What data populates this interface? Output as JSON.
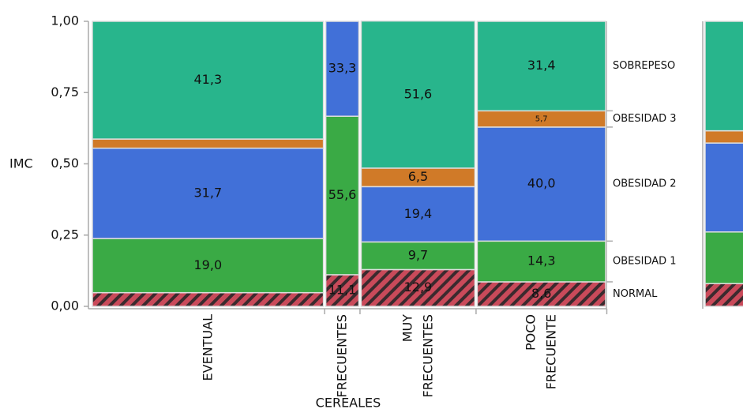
{
  "chart_data": {
    "type": "mosaic",
    "y_label": "IMC",
    "x_label": "CEREALES",
    "categories": [
      "EVENTUAL",
      "FRECUENTES",
      "MUY FRECUENTES",
      "POCO FRECUENTE"
    ],
    "column_sizes": [
      63,
      9,
      31,
      35
    ],
    "ylim": [
      0,
      1
    ],
    "yticks": [
      {
        "value": 0,
        "label": "0,00"
      },
      {
        "value": 0.25,
        "label": "0,25"
      },
      {
        "value": 0.5,
        "label": "0,50"
      },
      {
        "value": 0.75,
        "label": "0,75"
      },
      {
        "value": 1,
        "label": "1,00"
      }
    ],
    "series": [
      {
        "name": "NORMAL",
        "color": "#c94a5a",
        "hatch": true,
        "values": [
          0.048,
          0.111,
          0.129,
          0.086
        ],
        "value_labels": [
          null,
          "11,1",
          "12,9",
          "8,6"
        ]
      },
      {
        "name": "OBESIDAD 1",
        "color": "#3aaa45",
        "values": [
          0.19,
          0.556,
          0.097,
          0.143
        ],
        "value_labels": [
          "19,0",
          "55,6",
          "9,7",
          "14,3"
        ]
      },
      {
        "name": "OBESIDAD 2",
        "color": "#4170d8",
        "values": [
          0.317,
          0.333,
          0.194,
          0.4
        ],
        "value_labels": [
          "31,7",
          "33,3",
          "19,4",
          "40,0"
        ]
      },
      {
        "name": "OBESIDAD 3",
        "color": "#d07a28",
        "values": [
          0.032,
          0,
          0.065,
          0.057
        ],
        "value_labels": [
          null,
          null,
          "6,5",
          "5,7"
        ]
      },
      {
        "name": "SOBREPESO",
        "color": "#28b58c",
        "values": [
          0.413,
          0,
          0.516,
          0.314
        ],
        "value_labels": [
          "41,3",
          null,
          "51,6",
          "31,4"
        ]
      }
    ],
    "overall": [
      0.08,
      0.181,
      0.312,
      0.043,
      0.384
    ]
  }
}
